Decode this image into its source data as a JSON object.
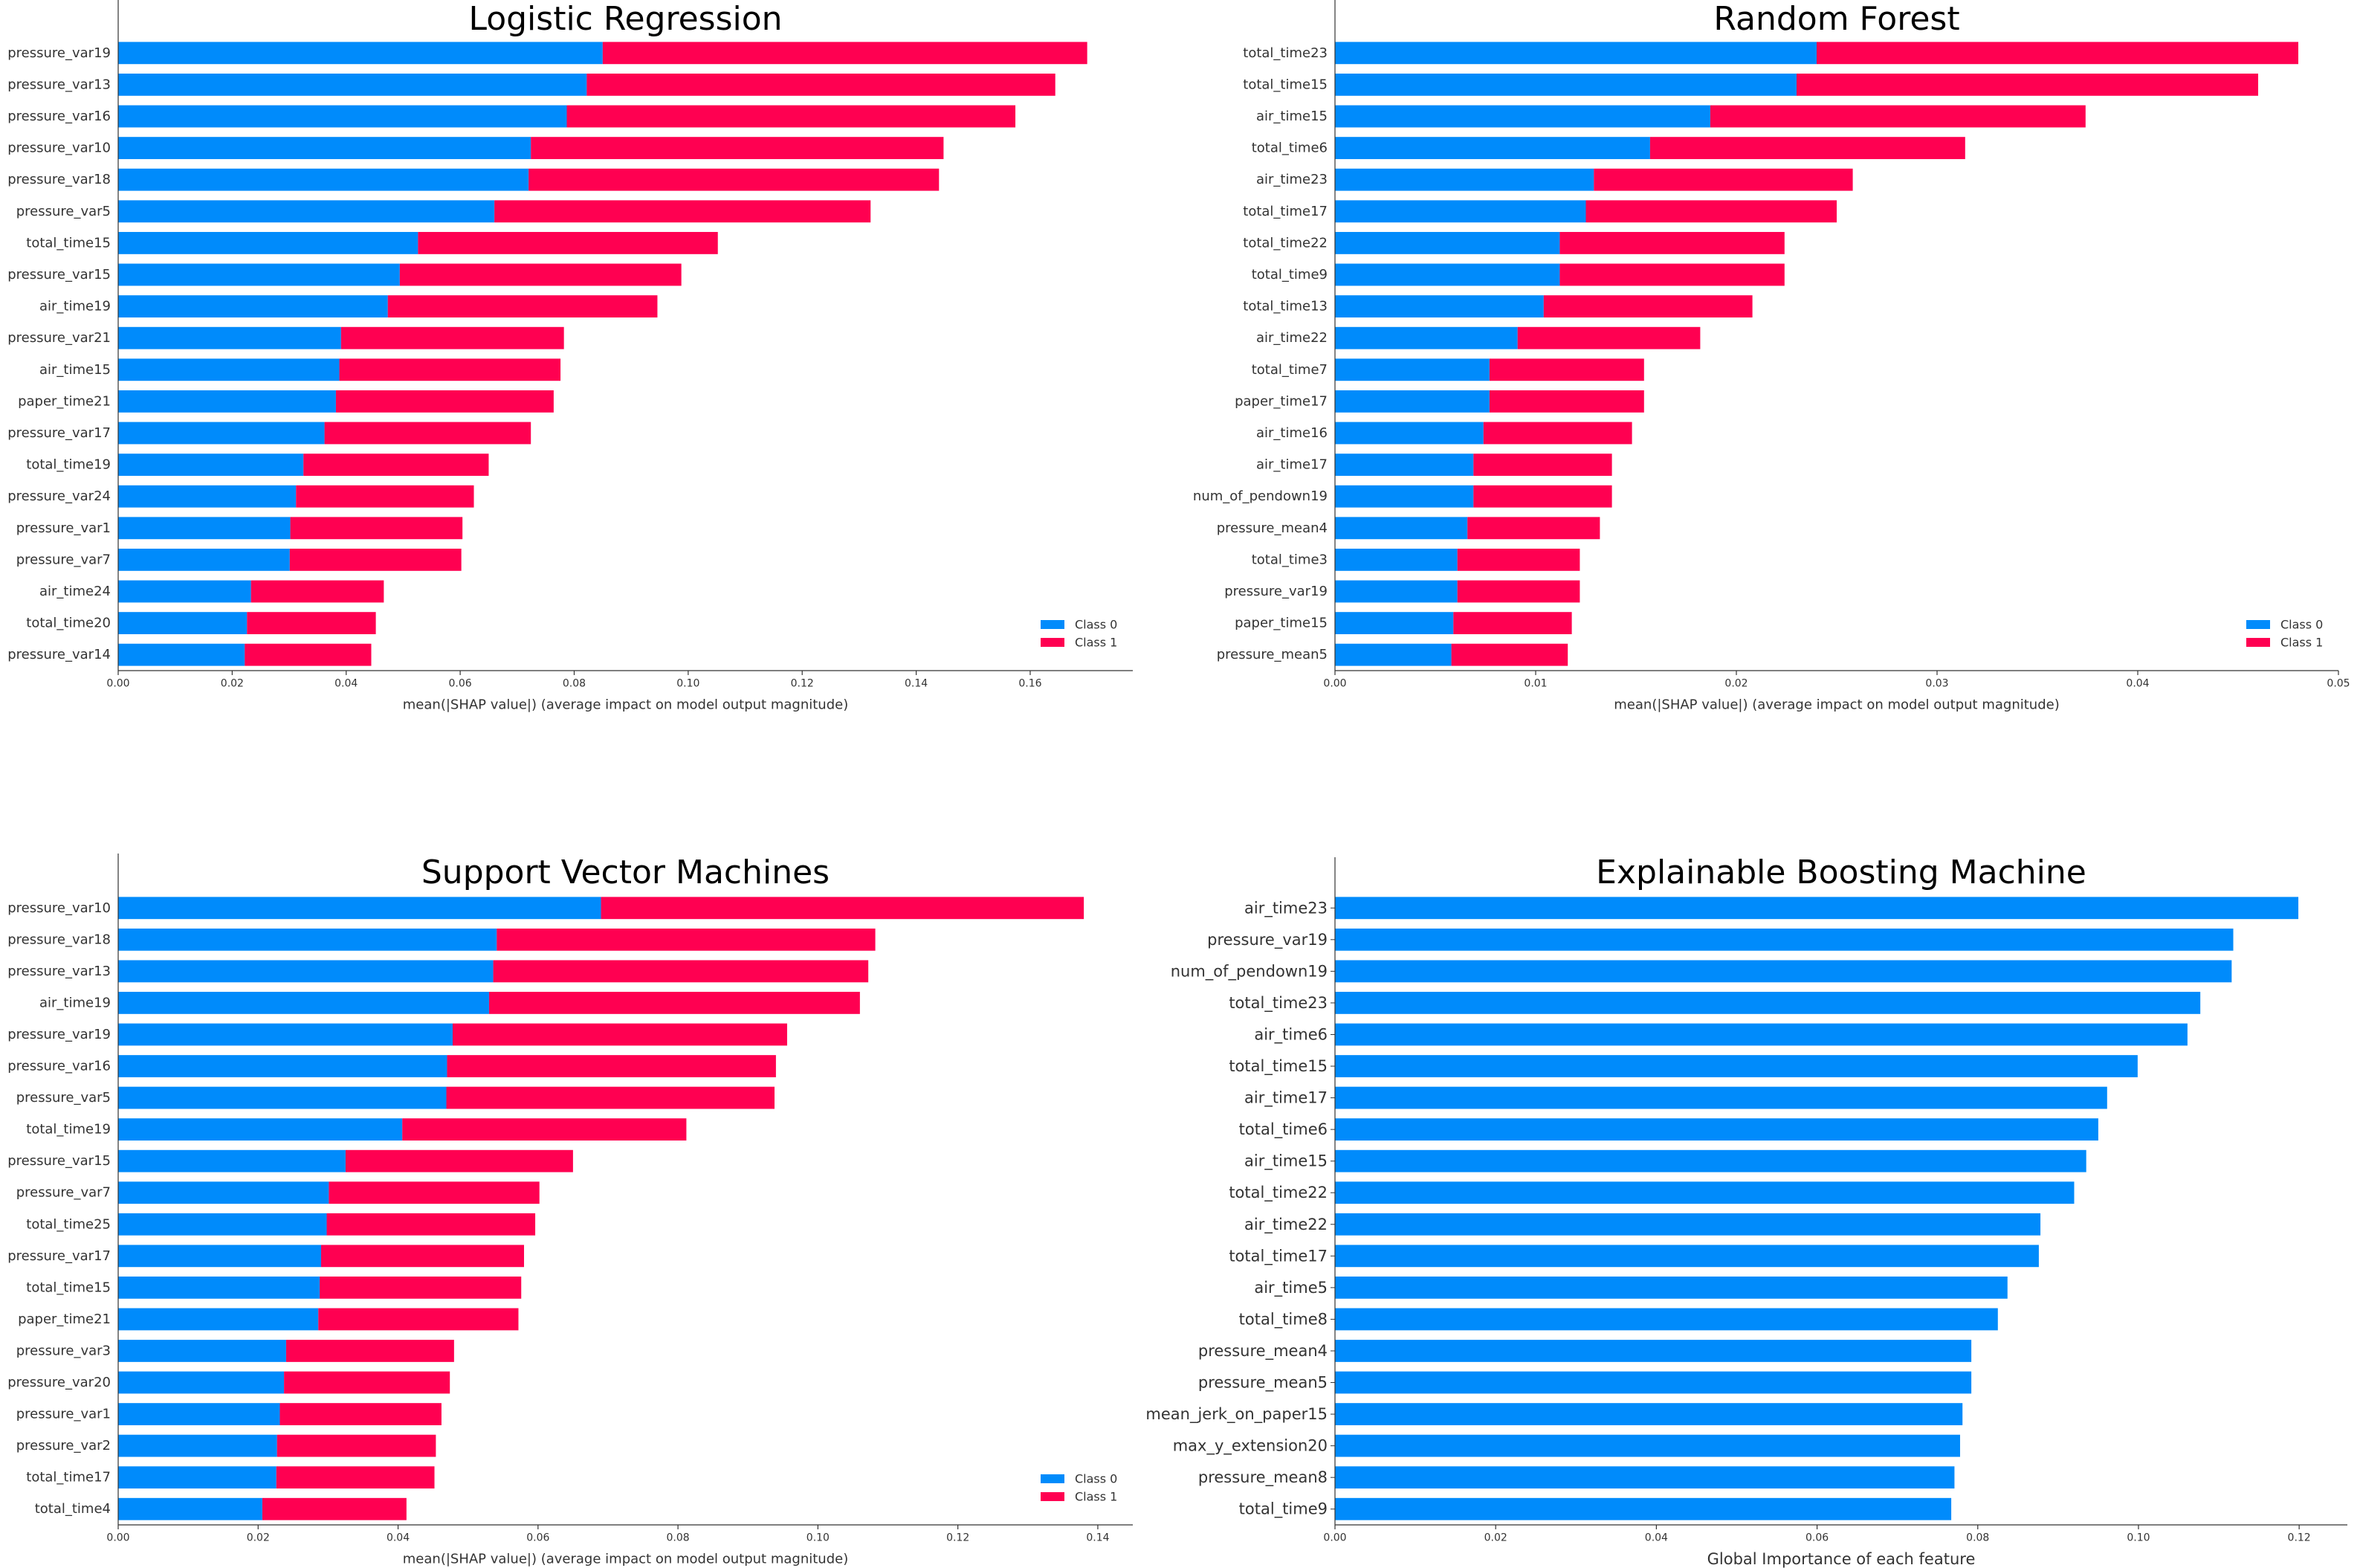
{
  "chart_data": [
    {
      "type": "bar",
      "stacked": true,
      "orientation": "horizontal",
      "title": "Logistic Regression",
      "xlabel": "mean(|SHAP value|) (average impact on model output magnitude)",
      "xlim": [
        0,
        0.178
      ],
      "xticks": [
        "0.00",
        "0.02",
        "0.04",
        "0.06",
        "0.08",
        "0.10",
        "0.12",
        "0.14",
        "0.16"
      ],
      "legend_position": "lower-right",
      "grid": false,
      "colors": {
        "Class 0": "#008bfb",
        "Class 1": "#ff0051"
      },
      "categories": [
        "pressure_var19",
        "pressure_var13",
        "pressure_var16",
        "pressure_var10",
        "pressure_var18",
        "pressure_var5",
        "total_time15",
        "pressure_var15",
        "air_time19",
        "pressure_var21",
        "air_time15",
        "paper_time21",
        "pressure_var17",
        "total_time19",
        "pressure_var24",
        "pressure_var1",
        "pressure_var7",
        "air_time24",
        "total_time20",
        "pressure_var14"
      ],
      "series": [
        {
          "name": "Class 0",
          "values": [
            0.085,
            0.0822,
            0.0787,
            0.0724,
            0.072,
            0.066,
            0.0526,
            0.0494,
            0.0473,
            0.0391,
            0.0388,
            0.0382,
            0.0362,
            0.0325,
            0.0312,
            0.0302,
            0.0301,
            0.0233,
            0.0226,
            0.0222
          ]
        },
        {
          "name": "Class 1",
          "values": [
            0.085,
            0.0822,
            0.0787,
            0.0724,
            0.072,
            0.066,
            0.0526,
            0.0494,
            0.0473,
            0.0391,
            0.0388,
            0.0382,
            0.0362,
            0.0325,
            0.0312,
            0.0302,
            0.0301,
            0.0233,
            0.0226,
            0.0222
          ]
        }
      ]
    },
    {
      "type": "bar",
      "stacked": true,
      "orientation": "horizontal",
      "title": "Random Forest",
      "xlabel": "mean(|SHAP value|) (average impact on model output magnitude)",
      "xlim": [
        0,
        0.05
      ],
      "xticks": [
        "0.00",
        "0.01",
        "0.02",
        "0.03",
        "0.04",
        "0.05"
      ],
      "legend_position": "lower-right",
      "grid": false,
      "colors": {
        "Class 0": "#008bfb",
        "Class 1": "#ff0051"
      },
      "categories": [
        "total_time23",
        "total_time15",
        "air_time15",
        "total_time6",
        "air_time23",
        "total_time17",
        "total_time22",
        "total_time9",
        "total_time13",
        "air_time22",
        "total_time7",
        "paper_time17",
        "air_time16",
        "air_time17",
        "num_of_pendown19",
        "pressure_mean4",
        "total_time3",
        "pressure_var19",
        "paper_time15",
        "pressure_mean5"
      ],
      "series": [
        {
          "name": "Class 0",
          "values": [
            0.024,
            0.023,
            0.0187,
            0.0157,
            0.0129,
            0.0125,
            0.0112,
            0.0112,
            0.0104,
            0.0091,
            0.0077,
            0.0077,
            0.0074,
            0.0069,
            0.0069,
            0.0066,
            0.0061,
            0.0061,
            0.0059,
            0.0058
          ]
        },
        {
          "name": "Class 1",
          "values": [
            0.024,
            0.023,
            0.0187,
            0.0157,
            0.0129,
            0.0125,
            0.0112,
            0.0112,
            0.0104,
            0.0091,
            0.0077,
            0.0077,
            0.0074,
            0.0069,
            0.0069,
            0.0066,
            0.0061,
            0.0061,
            0.0059,
            0.0058
          ]
        }
      ]
    },
    {
      "type": "bar",
      "stacked": true,
      "orientation": "horizontal",
      "title": "Support Vector Machines",
      "xlabel": "mean(|SHAP value|) (average impact on model output magnitude)",
      "xlim": [
        0,
        0.145
      ],
      "xticks": [
        "0.00",
        "0.02",
        "0.04",
        "0.06",
        "0.08",
        "0.10",
        "0.12",
        "0.14"
      ],
      "legend_position": "lower-right",
      "grid": false,
      "colors": {
        "Class 0": "#008bfb",
        "Class 1": "#ff0051"
      },
      "categories": [
        "pressure_var10",
        "pressure_var18",
        "pressure_var13",
        "air_time19",
        "pressure_var19",
        "pressure_var16",
        "pressure_var5",
        "total_time19",
        "pressure_var15",
        "pressure_var7",
        "total_time25",
        "pressure_var17",
        "total_time15",
        "paper_time21",
        "pressure_var3",
        "pressure_var20",
        "pressure_var1",
        "pressure_var2",
        "total_time17",
        "total_time4"
      ],
      "series": [
        {
          "name": "Class 0",
          "values": [
            0.069,
            0.0541,
            0.0536,
            0.053,
            0.0478,
            0.047,
            0.0469,
            0.0406,
            0.0325,
            0.0301,
            0.0298,
            0.029,
            0.0288,
            0.0286,
            0.024,
            0.0237,
            0.0231,
            0.0227,
            0.0226,
            0.0206
          ]
        },
        {
          "name": "Class 1",
          "values": [
            0.069,
            0.0541,
            0.0536,
            0.053,
            0.0478,
            0.047,
            0.0469,
            0.0406,
            0.0325,
            0.0301,
            0.0298,
            0.029,
            0.0288,
            0.0286,
            0.024,
            0.0237,
            0.0231,
            0.0227,
            0.0226,
            0.0206
          ]
        }
      ]
    },
    {
      "type": "bar",
      "stacked": false,
      "orientation": "horizontal",
      "title": "Explainable Boosting Machine",
      "xlabel": "Global Importance of each feature",
      "xlim": [
        0,
        0.126
      ],
      "xticks": [
        "0.00",
        "0.02",
        "0.04",
        "0.06",
        "0.08",
        "0.10",
        "0.12"
      ],
      "grid": false,
      "colors": {
        "bar": "#008bfb"
      },
      "categories": [
        "air_time23",
        "pressure_var19",
        "num_of_pendown19",
        "total_time23",
        "air_time6",
        "total_time15",
        "air_time17",
        "total_time6",
        "air_time15",
        "total_time22",
        "air_time22",
        "total_time17",
        "air_time5",
        "total_time8",
        "pressure_mean4",
        "pressure_mean5",
        "mean_jerk_on_paper15",
        "max_y_extension20",
        "pressure_mean8",
        "total_time9"
      ],
      "values": [
        0.1199,
        0.1118,
        0.1116,
        0.1077,
        0.1061,
        0.0999,
        0.0961,
        0.095,
        0.0935,
        0.092,
        0.0878,
        0.0876,
        0.0837,
        0.0825,
        0.0792,
        0.0792,
        0.0781,
        0.0778,
        0.0771,
        0.0767
      ]
    }
  ]
}
